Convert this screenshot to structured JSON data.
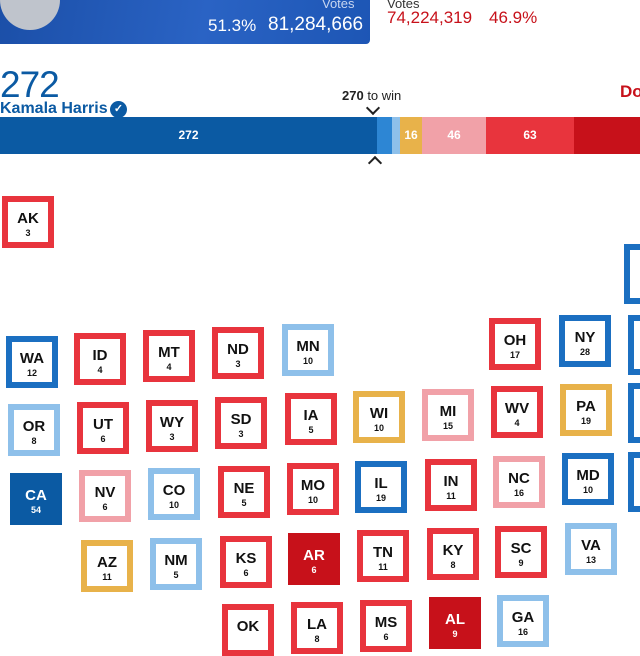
{
  "header": {
    "dem_votes_word": "Votes",
    "dem_pct": "51.3%",
    "dem_votes": "81,284,666",
    "rep_votes_word": "Votes",
    "rep_votes": "74,224,319",
    "rep_pct": "46.9%"
  },
  "tally": {
    "dem_ev": "272",
    "dem_name": "Kamala Harris",
    "to_win_number": "270",
    "to_win_text": " to win",
    "rep_name_fragment": "Do"
  },
  "bar": [
    {
      "label": "272",
      "color": "#0b5aa3"
    },
    {
      "label": "",
      "color": "#2d86d4"
    },
    {
      "label": "",
      "color": "#8ec0ea"
    },
    {
      "label": "16",
      "color": "#e8b24a"
    },
    {
      "label": "46",
      "color": "#f1a1a8"
    },
    {
      "label": "63",
      "color": "#e8343d"
    },
    {
      "label": "",
      "color": "#c7111a"
    }
  ],
  "colors": {
    "solid_dem": "#0b5aa3",
    "likely_dem": "#1b6fc1",
    "lean_dem": "#8ec0ea",
    "tossup": "#e8b24a",
    "lean_rep": "#f1a1a8",
    "likely_rep": "#e8343d",
    "solid_rep": "#c7111a"
  },
  "states": [
    {
      "abbr": "AK",
      "ev": "3",
      "rating": "likely_rep"
    },
    {
      "abbr": "WA",
      "ev": "12",
      "rating": "likely_dem"
    },
    {
      "abbr": "ID",
      "ev": "4",
      "rating": "likely_rep"
    },
    {
      "abbr": "MT",
      "ev": "4",
      "rating": "likely_rep"
    },
    {
      "abbr": "ND",
      "ev": "3",
      "rating": "likely_rep"
    },
    {
      "abbr": "MN",
      "ev": "10",
      "rating": "lean_dem"
    },
    {
      "abbr": "OH",
      "ev": "17",
      "rating": "likely_rep"
    },
    {
      "abbr": "NY",
      "ev": "28",
      "rating": "likely_dem"
    },
    {
      "abbr": "OR",
      "ev": "8",
      "rating": "lean_dem"
    },
    {
      "abbr": "UT",
      "ev": "6",
      "rating": "likely_rep"
    },
    {
      "abbr": "WY",
      "ev": "3",
      "rating": "likely_rep"
    },
    {
      "abbr": "SD",
      "ev": "3",
      "rating": "likely_rep"
    },
    {
      "abbr": "IA",
      "ev": "5",
      "rating": "likely_rep"
    },
    {
      "abbr": "WI",
      "ev": "10",
      "rating": "tossup"
    },
    {
      "abbr": "MI",
      "ev": "15",
      "rating": "lean_rep"
    },
    {
      "abbr": "WV",
      "ev": "4",
      "rating": "likely_rep"
    },
    {
      "abbr": "PA",
      "ev": "19",
      "rating": "tossup"
    },
    {
      "abbr": "CA",
      "ev": "54",
      "rating": "solid_dem"
    },
    {
      "abbr": "NV",
      "ev": "6",
      "rating": "lean_rep"
    },
    {
      "abbr": "CO",
      "ev": "10",
      "rating": "lean_dem"
    },
    {
      "abbr": "NE",
      "ev": "5",
      "rating": "likely_rep"
    },
    {
      "abbr": "MO",
      "ev": "10",
      "rating": "likely_rep"
    },
    {
      "abbr": "IL",
      "ev": "19",
      "rating": "likely_dem"
    },
    {
      "abbr": "IN",
      "ev": "11",
      "rating": "likely_rep"
    },
    {
      "abbr": "NC",
      "ev": "16",
      "rating": "lean_rep"
    },
    {
      "abbr": "MD",
      "ev": "10",
      "rating": "likely_dem"
    },
    {
      "abbr": "AZ",
      "ev": "11",
      "rating": "tossup"
    },
    {
      "abbr": "NM",
      "ev": "5",
      "rating": "lean_dem"
    },
    {
      "abbr": "KS",
      "ev": "6",
      "rating": "likely_rep"
    },
    {
      "abbr": "AR",
      "ev": "6",
      "rating": "solid_rep"
    },
    {
      "abbr": "TN",
      "ev": "11",
      "rating": "likely_rep"
    },
    {
      "abbr": "KY",
      "ev": "8",
      "rating": "likely_rep"
    },
    {
      "abbr": "SC",
      "ev": "9",
      "rating": "likely_rep"
    },
    {
      "abbr": "VA",
      "ev": "13",
      "rating": "lean_dem"
    },
    {
      "abbr": "OK",
      "ev": "",
      "rating": "likely_rep"
    },
    {
      "abbr": "LA",
      "ev": "8",
      "rating": "likely_rep"
    },
    {
      "abbr": "MS",
      "ev": "6",
      "rating": "likely_rep"
    },
    {
      "abbr": "AL",
      "ev": "9",
      "rating": "solid_rep"
    },
    {
      "abbr": "GA",
      "ev": "16",
      "rating": "lean_dem"
    }
  ]
}
